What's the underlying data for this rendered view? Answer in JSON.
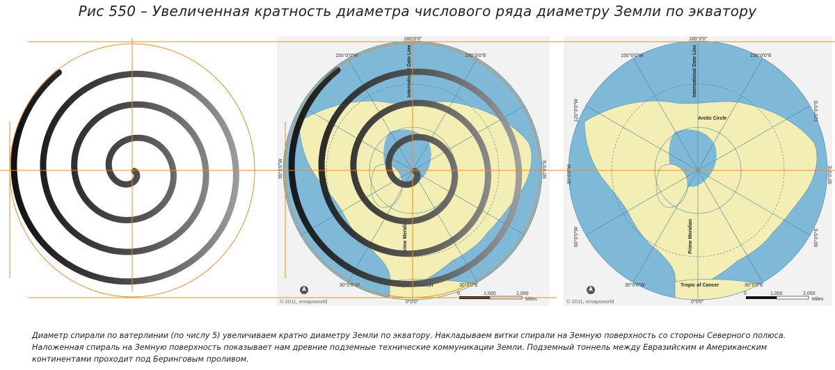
{
  "title": "Рис 550 – Увеличенная кратность диаметра числового ряда диаметру Земли по экватору",
  "map": {
    "lat_labels": {
      "lon_180": "180°0'0\"",
      "lon_150w": "150°0'0\"W",
      "lon_150e": "150°0'0\"E",
      "lon_120w": "120°0'0\"W",
      "lon_120e": "120°0'0\"E",
      "lon_90w": "90°0'0\"W",
      "lon_90e": "90°0'0\"E",
      "lon_60w": "60°0'0\"W",
      "lon_60e": "60°0'0\"E",
      "lon_30w": "30°0'0\"W",
      "lon_30e": "30°0'0\"E",
      "lon_0": "0°0'0\""
    },
    "idl": "International Date Line",
    "prime": "Prime Meridian",
    "arctic": "Arctic Circle",
    "tropic": "Tropic of Cancer",
    "credit": "© 2011, emapsworld",
    "scale": {
      "s0": "0",
      "s1": "1,000",
      "s2": "2,000",
      "unit": "Miles"
    }
  },
  "caption": {
    "line1": "Диаметр спирали по ватерлинии (по числу 5) увеличиваем кратно диаметру Земли по экватору. Накладываем витки спирали на Земную поверхность со стороны Северного полюса.",
    "line2": "Наложенная спираль на Земную поверхность показывает нам древние подземные технические коммуникации Земли. Подземный тоннель между Евразийским и Американским",
    "line3": "континентами проходит под Беринговым проливом."
  },
  "colors": {
    "ocean": "#7fb9d8",
    "land": "#f3efb4",
    "guide": "#f08a1c",
    "spiral_dark": "#1a1a1a",
    "spiral_light": "#8a8a8a"
  }
}
